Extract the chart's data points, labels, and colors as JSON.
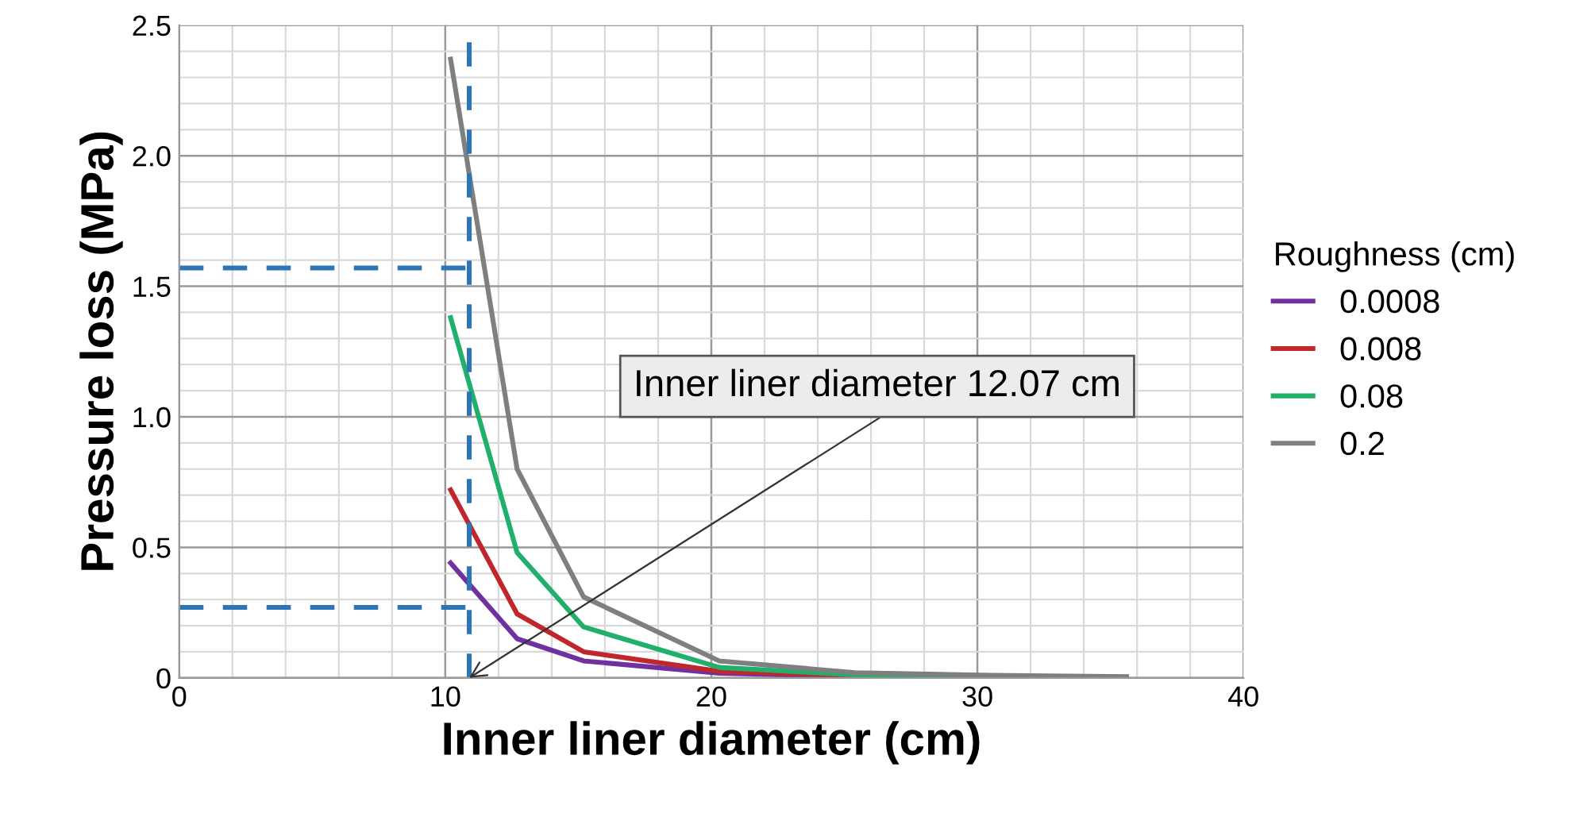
{
  "chart_data": {
    "type": "line",
    "xlabel": "Inner liner diameter (cm)",
    "ylabel": "Pressure loss (MPa)",
    "legend_title": "Roughness (cm)",
    "x": [
      10.2,
      12.7,
      15.2,
      20.3,
      25.4,
      30.5,
      35.6
    ],
    "series": [
      {
        "name": "0.0008",
        "color": "#7030a0",
        "values": [
          0.44,
          0.15,
          0.065,
          0.018,
          0.005,
          0.002,
          0.001
        ]
      },
      {
        "name": "0.008",
        "color": "#c0272d",
        "values": [
          0.72,
          0.245,
          0.1,
          0.025,
          0.008,
          0.003,
          0.002
        ]
      },
      {
        "name": "0.08",
        "color": "#21b06b",
        "values": [
          1.38,
          0.48,
          0.195,
          0.04,
          0.012,
          0.005,
          0.003
        ]
      },
      {
        "name": "0.2",
        "color": "#7f7f7f",
        "values": [
          2.37,
          0.8,
          0.31,
          0.065,
          0.02,
          0.01,
          0.005
        ]
      }
    ],
    "xlim": [
      0,
      40
    ],
    "ylim": [
      0,
      2.5
    ],
    "xticks": [
      0,
      10,
      20,
      30,
      40
    ],
    "yticks": [
      0,
      {
        "value": 0.5,
        "label": "0.5"
      },
      {
        "value": 1,
        "label": "1.0"
      },
      {
        "value": 1.5,
        "label": "1.5"
      },
      {
        "value": 2,
        "label": "2.0"
      },
      {
        "value": 2.5,
        "label": "2.5"
      }
    ],
    "ref_lines": [
      {
        "axis": "x",
        "value": 10.9,
        "label": null,
        "color": "#2e75b6",
        "line_style": "dashed"
      },
      {
        "axis": "y",
        "value": 1.57,
        "label": null,
        "color": "#2e75b6",
        "line_style": "dashed"
      },
      {
        "axis": "y",
        "value": 0.27,
        "label": null,
        "color": "#2e75b6",
        "line_style": "dashed"
      }
    ],
    "annotations": [
      "Inner liner diameter 12.07 cm"
    ],
    "grid": true,
    "legend": "right",
    "marker": "none",
    "line_style": "solid"
  }
}
